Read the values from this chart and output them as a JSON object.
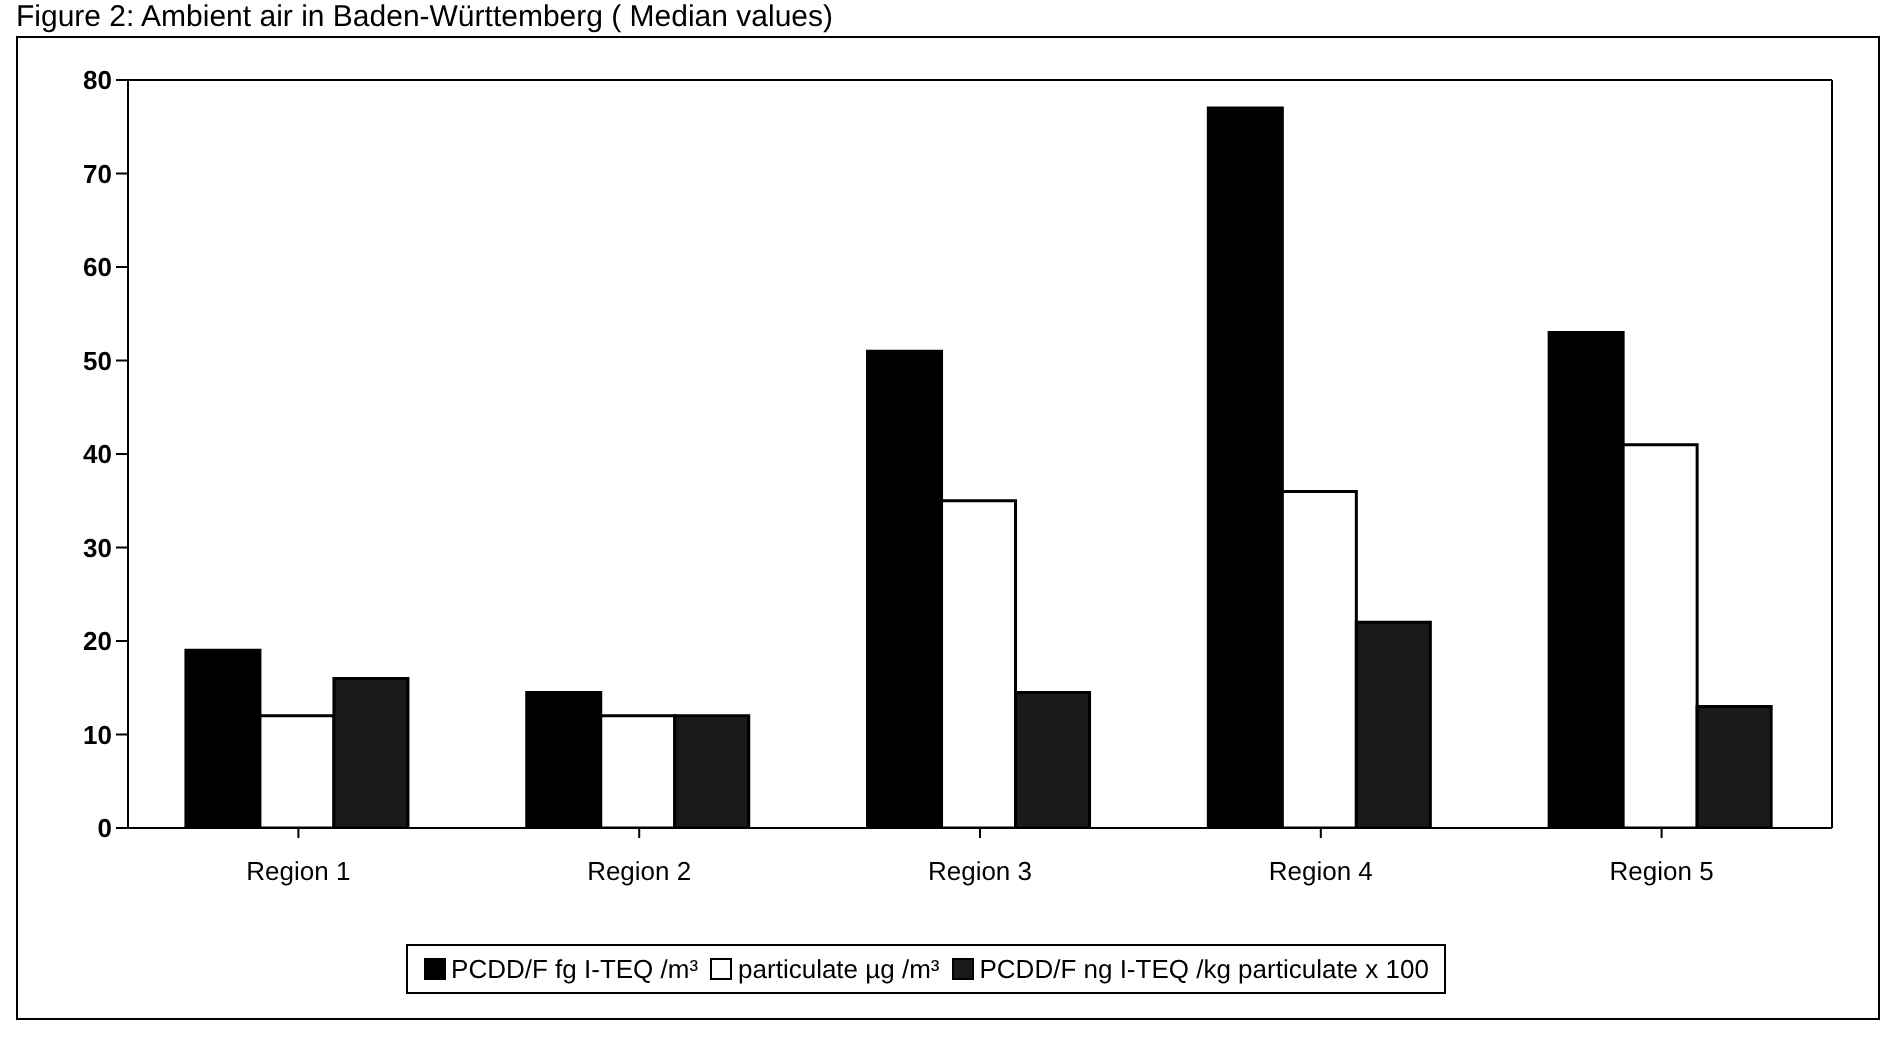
{
  "chart_data": {
    "type": "bar",
    "title": "Figure 2: Ambient air in Baden-Württemberg ( Median values)",
    "categories": [
      "Region 1",
      "Region 2",
      "Region 3",
      "Region 4",
      "Region 5"
    ],
    "series": [
      {
        "name": "PCDD/F fg I-TEQ /m³",
        "color": "#000000",
        "values": [
          19,
          14.5,
          51,
          77,
          53
        ]
      },
      {
        "name": "particulate µg /m³",
        "color": "#ffffff",
        "values": [
          12,
          12,
          35,
          36,
          41
        ]
      },
      {
        "name": "PCDD/F ng I-TEQ /kg particulate x 100",
        "color": "#1a1a1a",
        "values": [
          16,
          12,
          14.5,
          22,
          13
        ]
      }
    ],
    "ylim": [
      0,
      80
    ],
    "yticks": [
      0,
      10,
      20,
      30,
      40,
      50,
      60,
      70,
      80
    ],
    "legend": "bottom"
  }
}
